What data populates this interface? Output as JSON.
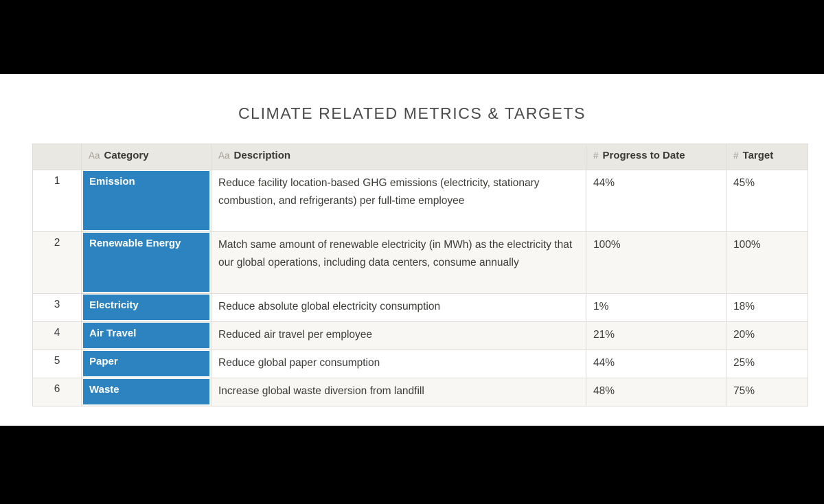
{
  "page": {
    "title": "CLIMATE RELATED METRICS & TARGETS"
  },
  "table": {
    "header": {
      "row_number_label": "",
      "columns": [
        {
          "label": "Category",
          "icon": "Aa",
          "icon_name": "text-type-icon"
        },
        {
          "label": "Description",
          "icon": "Aa",
          "icon_name": "text-type-icon"
        },
        {
          "label": "Progress to Date",
          "icon": "#",
          "icon_name": "number-type-icon"
        },
        {
          "label": "Target",
          "icon": "#",
          "icon_name": "number-type-icon"
        }
      ]
    },
    "rows": [
      {
        "num": "1",
        "category": "Emission",
        "description": "Reduce facility location-based GHG emissions (electricity, stationary combustion, and refrigerants) per full-time employee",
        "progress": "44%",
        "target": "45%"
      },
      {
        "num": "2",
        "category": "Renewable Energy",
        "description": "Match same amount of renewable electricity (in MWh) as the electricity that our global operations, including data centers, consume annually",
        "progress": "100%",
        "target": "100%"
      },
      {
        "num": "3",
        "category": "Electricity",
        "description": "Reduce absolute global electricity consumption",
        "progress": "1%",
        "target": "18%"
      },
      {
        "num": "4",
        "category": "Air Travel",
        "description": "Reduced air travel per employee",
        "progress": "21%",
        "target": "20%"
      },
      {
        "num": "5",
        "category": "Paper",
        "description": "Reduce global paper consumption",
        "progress": "44%",
        "target": "25%"
      },
      {
        "num": "6",
        "category": "Waste",
        "description": "Increase global waste diversion from landfill",
        "progress": "48%",
        "target": "75%"
      }
    ]
  },
  "colors": {
    "category_fill": "#2d83bf",
    "category_text": "#ffffff",
    "header_bg": "#eae8e2",
    "row_alt_bg": "#f8f7f4",
    "grid_line": "#dedcd7",
    "letterbox": "#000000"
  }
}
